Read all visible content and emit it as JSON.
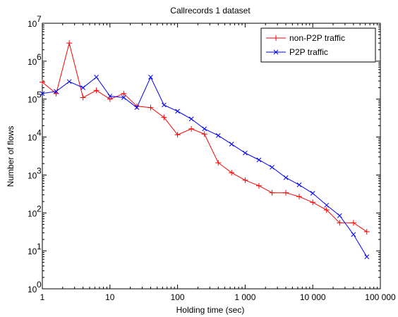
{
  "chart_data": {
    "type": "line",
    "title": "Callrecords 1 dataset",
    "xlabel": "Holding time (sec)",
    "ylabel": "Number of flows",
    "xscale": "log",
    "yscale": "log",
    "xlim": [
      1,
      100000
    ],
    "ylim": [
      1,
      10000000
    ],
    "grid": false,
    "legend_position": "top-right",
    "x_ticks": [
      1,
      10,
      100,
      1000,
      10000,
      100000
    ],
    "x_tick_labels": [
      "1",
      "10",
      "100",
      "1 000",
      "10 000",
      "100 000"
    ],
    "y_ticks": [
      1,
      10,
      100,
      1000,
      10000,
      100000,
      1000000,
      10000000
    ],
    "y_tick_labels": [
      {
        "base": "10",
        "exp": "0"
      },
      {
        "base": "10",
        "exp": "1"
      },
      {
        "base": "10",
        "exp": "2"
      },
      {
        "base": "10",
        "exp": "3"
      },
      {
        "base": "10",
        "exp": "4"
      },
      {
        "base": "10",
        "exp": "5"
      },
      {
        "base": "10",
        "exp": "6"
      },
      {
        "base": "10",
        "exp": "7"
      }
    ],
    "series": [
      {
        "name": "non-P2P traffic",
        "color": "#ff0000",
        "marker": "plus",
        "x": [
          1,
          1.6,
          2.5,
          4,
          6.3,
          10,
          16,
          25,
          40,
          63,
          100,
          160,
          250,
          400,
          630,
          1000,
          1600,
          2500,
          4000,
          6300,
          10000,
          16000,
          25000,
          40000,
          63000
        ],
        "y": [
          280000,
          140000,
          3000000,
          110000,
          170000,
          100000,
          140000,
          65000,
          60000,
          33000,
          11500,
          16500,
          12000,
          2100,
          1150,
          730,
          520,
          340,
          340,
          270,
          190,
          120,
          55,
          55,
          32
        ]
      },
      {
        "name": "P2P traffic",
        "color": "#0000ff",
        "marker": "x",
        "x": [
          1,
          1.6,
          2.5,
          4,
          6.3,
          10,
          16,
          25,
          40,
          63,
          100,
          160,
          250,
          400,
          630,
          1000,
          1600,
          2500,
          4000,
          6300,
          10000,
          16000,
          25000,
          40000,
          63000
        ],
        "y": [
          140000,
          160000,
          290000,
          200000,
          380000,
          120000,
          110000,
          60000,
          380000,
          70000,
          48000,
          30000,
          16500,
          11000,
          6500,
          3800,
          2500,
          1600,
          850,
          550,
          330,
          160,
          85,
          27,
          7
        ]
      }
    ]
  }
}
